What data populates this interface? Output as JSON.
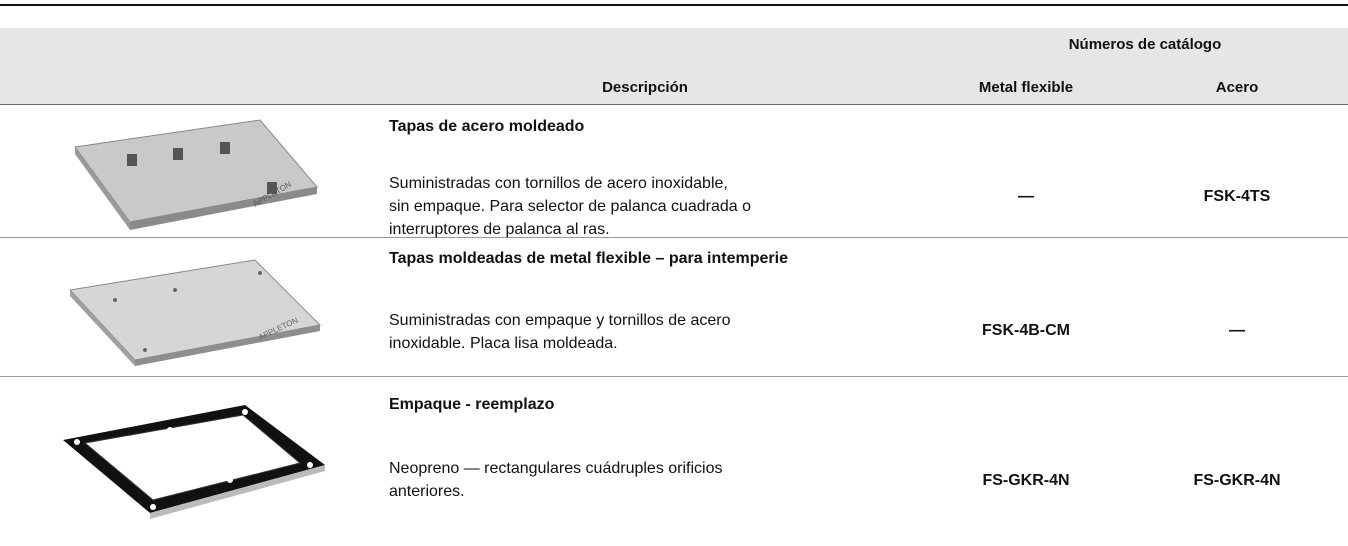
{
  "header": {
    "group_label": "Números de catálogo",
    "columns": [
      "Descripción",
      "Metal flexible",
      "Acero"
    ]
  },
  "rows": [
    {
      "title": "Tapas de acero moldeado",
      "description": [
        "Suministradas con tornillos de acero inoxidable,",
        "sin empaque. Para selector de palanca cuadrada o",
        "interruptores de palanca al ras."
      ],
      "metal_flexible": "—",
      "acero": "FSK-4TS"
    },
    {
      "title": "Tapas moldeadas de metal flexible – para intemperie",
      "description": [
        "Suministradas con empaque y tornillos de acero",
        "inoxidable. Placa lisa moldeada."
      ],
      "metal_flexible": "FSK-4B-CM",
      "acero": "—"
    },
    {
      "title": "Empaque - reemplazo",
      "description": [
        "Neopreno — rectangulares cuádruples orificios",
        "anteriores."
      ],
      "metal_flexible": "FS-GKR-4N",
      "acero": "FS-GKR-4N"
    }
  ]
}
